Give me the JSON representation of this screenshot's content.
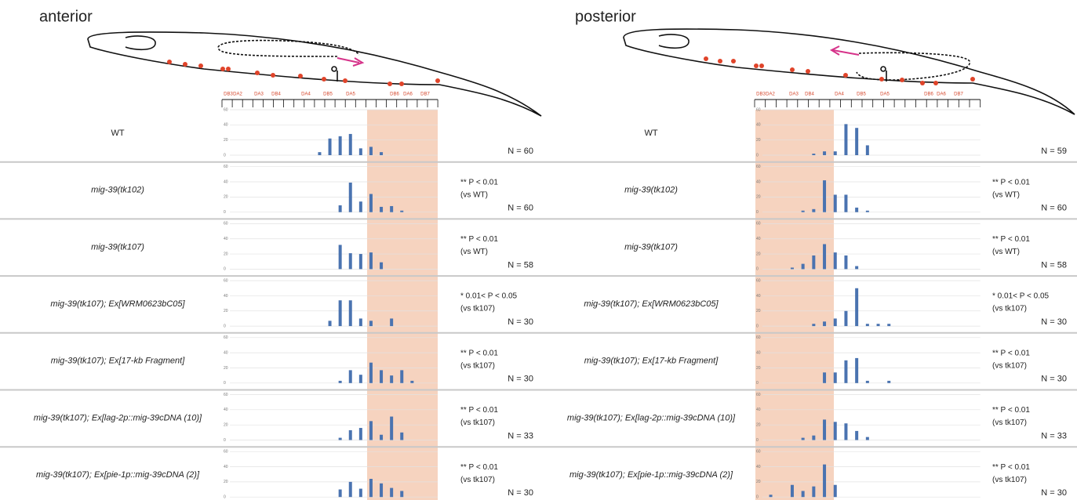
{
  "panels": [
    {
      "title": "anterior",
      "neuron_labels": [
        "DB3",
        "DA2",
        "DA3",
        "DB4",
        "DA4",
        "DB5",
        "DA5",
        "DB6",
        "DA6",
        "DB7"
      ],
      "chart_data": [
        {
          "type": "bar",
          "label": "WT",
          "italic": false,
          "n": "N = 60",
          "color": "#4a73b0",
          "ylim": [
            0,
            60
          ],
          "yticks": [
            0,
            20,
            40,
            60
          ],
          "grid": true,
          "values": [
            0,
            0,
            0,
            0,
            0,
            0,
            0,
            0,
            0,
            4,
            22,
            25,
            28,
            9,
            11,
            4,
            0,
            0,
            0,
            0,
            0
          ]
        },
        {
          "type": "bar",
          "label": "mig-39(tk102)",
          "italic": true,
          "stats": [
            "** P < 0.01",
            "(vs WT)"
          ],
          "n": "N = 60",
          "color": "#4a73b0",
          "ylim": [
            0,
            60
          ],
          "yticks": [
            0,
            20,
            40,
            60
          ],
          "grid": true,
          "values": [
            0,
            0,
            0,
            0,
            0,
            0,
            0,
            0,
            0,
            0,
            0,
            9,
            39,
            14,
            24,
            7,
            8,
            2,
            0,
            0,
            0
          ]
        },
        {
          "type": "bar",
          "label": "mig-39(tk107)",
          "italic": true,
          "stats": [
            "** P < 0.01",
            "(vs WT)"
          ],
          "n": "N = 58",
          "color": "#4a73b0",
          "ylim": [
            0,
            60
          ],
          "yticks": [
            0,
            20,
            40,
            60
          ],
          "grid": true,
          "values": [
            0,
            0,
            0,
            0,
            0,
            0,
            0,
            0,
            0,
            0,
            0,
            32,
            21,
            20,
            22,
            9,
            0,
            0,
            0,
            0,
            0
          ]
        },
        {
          "type": "bar",
          "label": "mig-39(tk107); Ex[WRM0623bC05]",
          "italic": true,
          "stats": [
            "* 0.01< P < 0.05",
            "(vs tk107)"
          ],
          "n": "N = 30",
          "color": "#4a73b0",
          "ylim": [
            0,
            60
          ],
          "yticks": [
            0,
            20,
            40,
            60
          ],
          "grid": true,
          "values": [
            0,
            0,
            0,
            0,
            0,
            0,
            0,
            0,
            0,
            0,
            7,
            34,
            34,
            10,
            7,
            0,
            10,
            0,
            0,
            0,
            0
          ]
        },
        {
          "type": "bar",
          "label": "mig-39(tk107); Ex[17-kb Fragment]",
          "italic": true,
          "stats": [
            "** P < 0.01",
            "(vs tk107)"
          ],
          "n": "N = 30",
          "color": "#4a73b0",
          "ylim": [
            0,
            60
          ],
          "yticks": [
            0,
            20,
            40,
            60
          ],
          "grid": true,
          "values": [
            0,
            0,
            0,
            0,
            0,
            0,
            0,
            0,
            0,
            0,
            0,
            3,
            17,
            11,
            27,
            17,
            10,
            17,
            3,
            0,
            0
          ]
        },
        {
          "type": "bar",
          "label": "mig-39(tk107); Ex[lag-2p::mig-39cDNA (10)]",
          "italic": true,
          "stats": [
            "** P < 0.01",
            "(vs tk107)"
          ],
          "n": "N = 33",
          "color": "#4a73b0",
          "ylim": [
            0,
            60
          ],
          "yticks": [
            0,
            20,
            40,
            60
          ],
          "grid": true,
          "values": [
            0,
            0,
            0,
            0,
            0,
            0,
            0,
            0,
            0,
            0,
            0,
            3,
            13,
            16,
            25,
            7,
            31,
            10,
            0,
            0,
            0
          ]
        },
        {
          "type": "bar",
          "label": "mig-39(tk107); Ex[pie-1p::mig-39cDNA (2)]",
          "italic": true,
          "stats": [
            "** P < 0.01",
            "(vs tk107)"
          ],
          "n": "N = 30",
          "color": "#4a73b0",
          "ylim": [
            0,
            60
          ],
          "yticks": [
            0,
            20,
            40,
            60
          ],
          "grid": true,
          "values": [
            0,
            0,
            0,
            0,
            0,
            0,
            0,
            0,
            0,
            0,
            0,
            10,
            20,
            11,
            24,
            18,
            12,
            8,
            0,
            0,
            0
          ]
        }
      ]
    },
    {
      "title": "posterior",
      "neuron_labels": [
        "DB3",
        "DA2",
        "DA3",
        "DB4",
        "DA4",
        "DB5",
        "DA5",
        "DB6",
        "DA6",
        "DB7"
      ],
      "chart_data": [
        {
          "type": "bar",
          "label": "WT",
          "italic": false,
          "n": "N = 59",
          "color": "#4a73b0",
          "ylim": [
            0,
            60
          ],
          "yticks": [
            0,
            20,
            40,
            60
          ],
          "grid": true,
          "values": [
            0,
            0,
            0,
            0,
            0,
            2,
            5,
            5,
            41,
            36,
            13,
            0,
            0,
            0,
            0,
            0,
            0,
            0,
            0,
            0,
            0
          ]
        },
        {
          "type": "bar",
          "label": "mig-39(tk102)",
          "italic": true,
          "stats": [
            "** P < 0.01",
            "(vs WT)"
          ],
          "n": "N = 60",
          "color": "#4a73b0",
          "ylim": [
            0,
            60
          ],
          "yticks": [
            0,
            20,
            40,
            60
          ],
          "grid": true,
          "values": [
            0,
            0,
            0,
            0,
            2,
            4,
            42,
            23,
            23,
            6,
            2,
            0,
            0,
            0,
            0,
            0,
            0,
            0,
            0,
            0,
            0
          ]
        },
        {
          "type": "bar",
          "label": "mig-39(tk107)",
          "italic": true,
          "stats": [
            "** P < 0.01",
            "(vs WT)"
          ],
          "n": "N = 58",
          "color": "#4a73b0",
          "ylim": [
            0,
            60
          ],
          "yticks": [
            0,
            20,
            40,
            60
          ],
          "grid": true,
          "values": [
            0,
            0,
            0,
            2,
            7,
            18,
            33,
            22,
            18,
            4,
            0,
            0,
            0,
            0,
            0,
            0,
            0,
            0,
            0,
            0,
            0
          ]
        },
        {
          "type": "bar",
          "label": "mig-39(tk107); Ex[WRM0623bC05]",
          "italic": true,
          "stats": [
            "* 0.01< P < 0.05",
            "(vs tk107)"
          ],
          "n": "N = 30",
          "color": "#4a73b0",
          "ylim": [
            0,
            60
          ],
          "yticks": [
            0,
            20,
            40,
            60
          ],
          "grid": true,
          "values": [
            0,
            0,
            0,
            0,
            0,
            3,
            6,
            10,
            20,
            50,
            3,
            3,
            3,
            0,
            0,
            0,
            0,
            0,
            0,
            0,
            0
          ]
        },
        {
          "type": "bar",
          "label": "mig-39(tk107); Ex[17-kb Fragment]",
          "italic": true,
          "stats": [
            "** P < 0.01",
            "(vs tk107)"
          ],
          "n": "N = 30",
          "color": "#4a73b0",
          "ylim": [
            0,
            60
          ],
          "yticks": [
            0,
            20,
            40,
            60
          ],
          "grid": true,
          "values": [
            0,
            0,
            0,
            0,
            0,
            0,
            14,
            14,
            30,
            33,
            3,
            0,
            3,
            0,
            0,
            0,
            0,
            0,
            0,
            0,
            0
          ]
        },
        {
          "type": "bar",
          "label": "mig-39(tk107); Ex[lag-2p::mig-39cDNA (10)]",
          "italic": true,
          "stats": [
            "** P < 0.01",
            "(vs tk107)"
          ],
          "n": "N = 33",
          "color": "#4a73b0",
          "ylim": [
            0,
            60
          ],
          "yticks": [
            0,
            20,
            40,
            60
          ],
          "grid": true,
          "values": [
            0,
            0,
            0,
            0,
            3,
            6,
            27,
            24,
            22,
            12,
            4,
            0,
            0,
            0,
            0,
            0,
            0,
            0,
            0,
            0,
            0
          ]
        },
        {
          "type": "bar",
          "label": "mig-39(tk107); Ex[pie-1p::mig-39cDNA (2)]",
          "italic": true,
          "stats": [
            "** P < 0.01",
            "(vs tk107)"
          ],
          "n": "N = 30",
          "color": "#4a73b0",
          "ylim": [
            0,
            60
          ],
          "yticks": [
            0,
            20,
            40,
            60
          ],
          "grid": true,
          "values": [
            0,
            3,
            0,
            16,
            8,
            14,
            43,
            16,
            0,
            0,
            0,
            0,
            0,
            0,
            0,
            0,
            0,
            0,
            0,
            0,
            0
          ]
        }
      ]
    }
  ]
}
